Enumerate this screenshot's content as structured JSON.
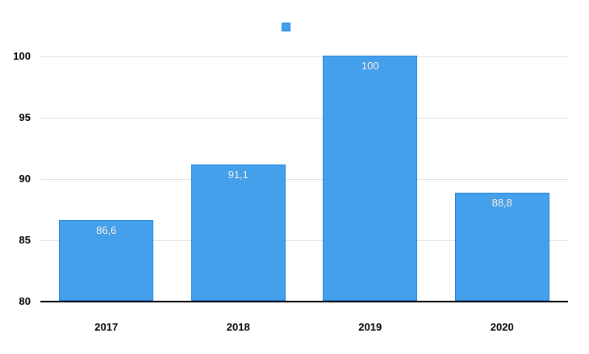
{
  "chart_data": {
    "type": "bar",
    "categories": [
      "2017",
      "2018",
      "2019",
      "2020"
    ],
    "values": [
      86.6,
      91.1,
      100,
      88.8
    ],
    "value_labels": [
      "86,6",
      "91,1",
      "100",
      "88,8"
    ],
    "title": "",
    "xlabel": "",
    "ylabel": "",
    "ylim": [
      80,
      100
    ],
    "yticks": [
      80,
      85,
      90,
      95,
      100
    ],
    "ytick_labels": [
      "80",
      "85",
      "90",
      "95",
      "100"
    ],
    "grid": true,
    "legend": {
      "position": "top-center",
      "label": "",
      "marker_shape": "square"
    },
    "colors": {
      "bar_fill": "#45A0EC",
      "bar_border": "#1F83DC",
      "gridline": "#E0E0E0",
      "axis_line": "#000000",
      "tick_label": "#000000",
      "data_label": "#FFFFFF",
      "background": "#FFFFFF"
    }
  }
}
